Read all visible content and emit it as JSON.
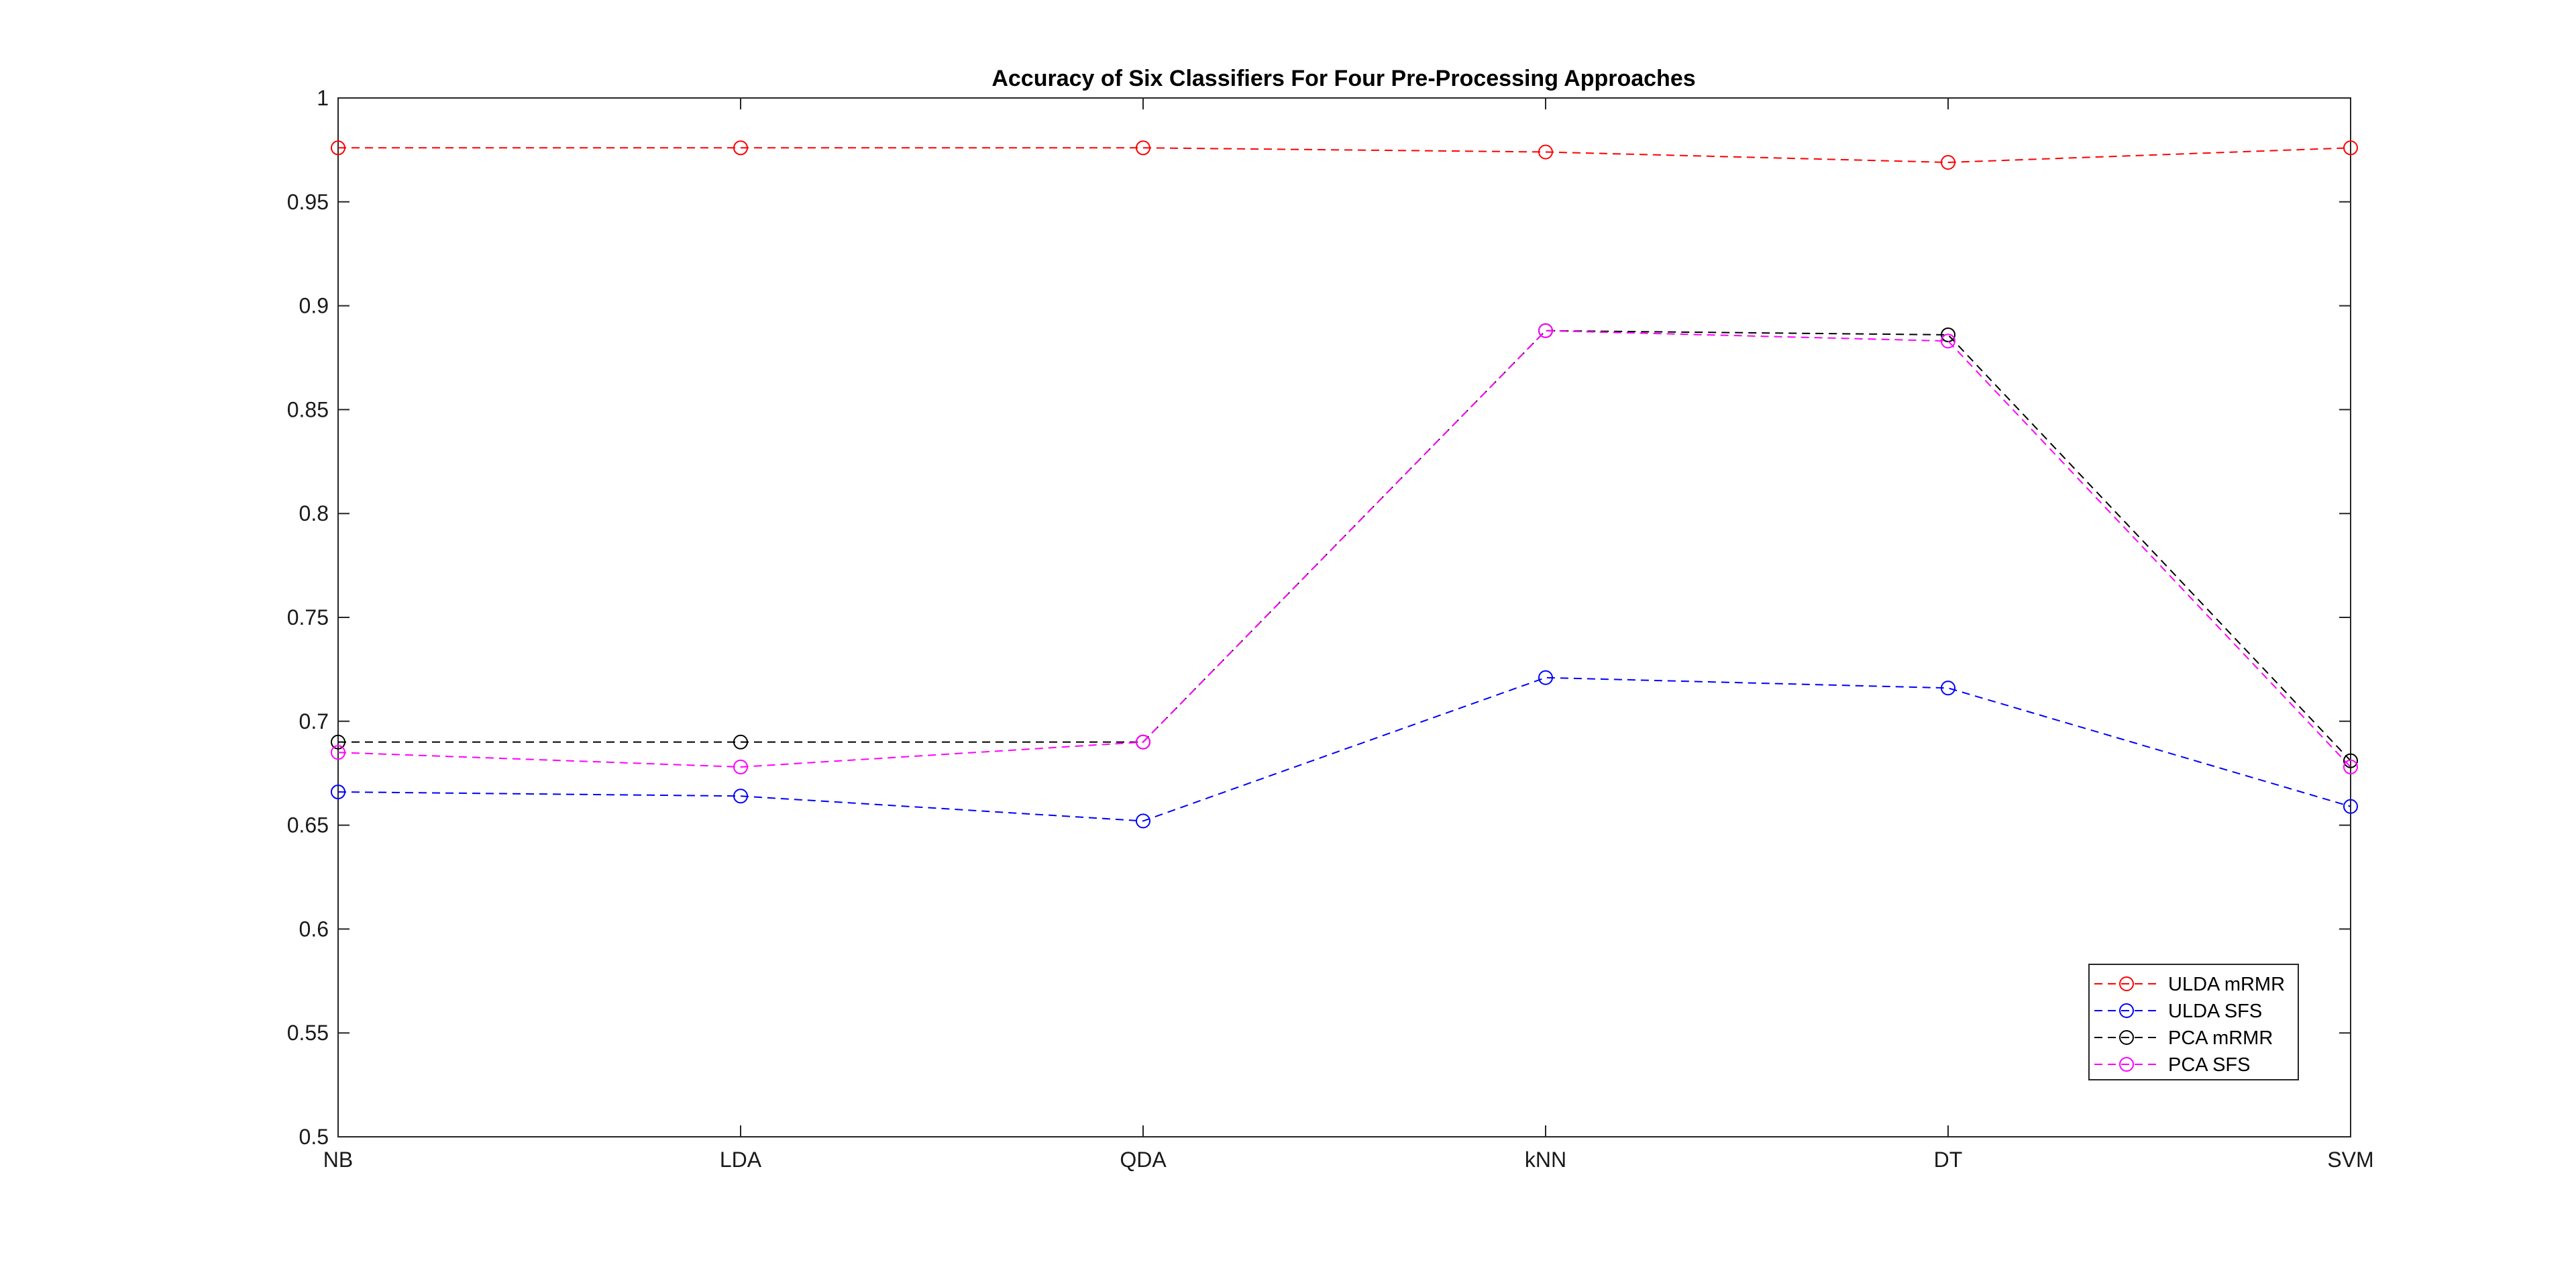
{
  "chart_data": {
    "type": "line",
    "title": "Accuracy of Six Classifiers For Four Pre-Processing Approaches",
    "xlabel": "",
    "ylabel": "",
    "categories": [
      "NB",
      "LDA",
      "QDA",
      "kNN",
      "DT",
      "SVM"
    ],
    "y_ticks": [
      "0.5",
      "0.55",
      "0.6",
      "0.65",
      "0.7",
      "0.75",
      "0.8",
      "0.85",
      "0.9",
      "0.95",
      "1"
    ],
    "ylim": [
      0.5,
      1
    ],
    "grid": false,
    "legend_position": "bottom-right",
    "series": [
      {
        "name": "ULDA mRMR",
        "color": "#ff0000",
        "line_style": "dashed",
        "marker": "circle",
        "values": [
          0.976,
          0.976,
          0.976,
          0.974,
          0.969,
          0.976
        ]
      },
      {
        "name": "ULDA SFS",
        "color": "#0000ff",
        "line_style": "dashed",
        "marker": "circle",
        "values": [
          0.666,
          0.664,
          0.652,
          0.721,
          0.716,
          0.659
        ]
      },
      {
        "name": "PCA mRMR",
        "color": "#000000",
        "line_style": "dashed",
        "marker": "circle",
        "values": [
          0.69,
          0.69,
          0.69,
          0.888,
          0.886,
          0.681
        ]
      },
      {
        "name": "PCA SFS",
        "color": "#ff00ff",
        "line_style": "dashed",
        "marker": "circle",
        "values": [
          0.685,
          0.678,
          0.69,
          0.888,
          0.883,
          0.678
        ]
      }
    ]
  }
}
